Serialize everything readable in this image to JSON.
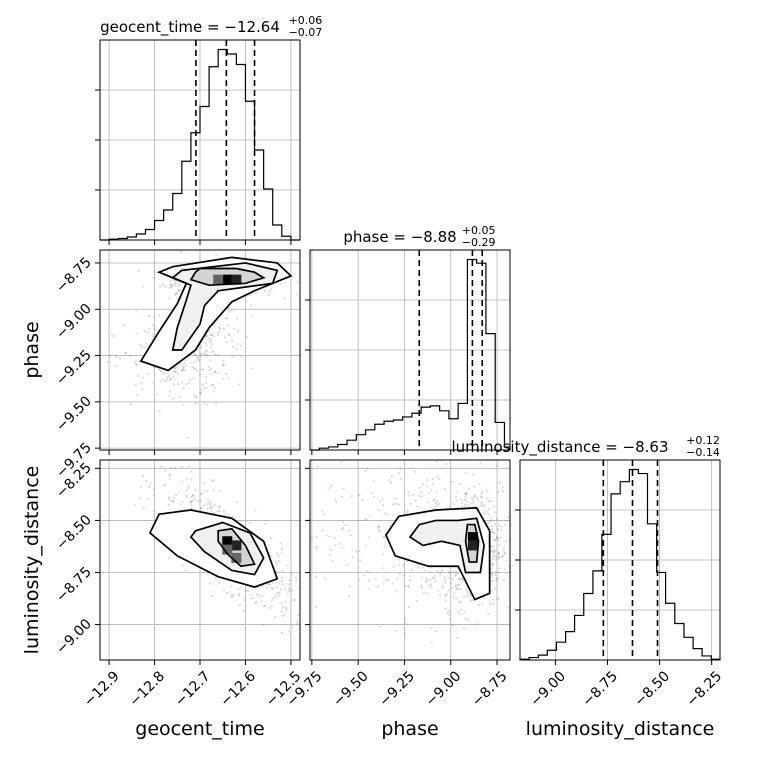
{
  "chart_data": {
    "type": "corner",
    "parameters": [
      "geocent_time",
      "phase",
      "luminosity_distance"
    ],
    "axis_labels": {
      "geocent_time": "geocent_time",
      "phase": "phase",
      "luminosity_distance": "luminosity_distance"
    },
    "ranges": {
      "geocent_time": [
        -12.92,
        -12.48
      ],
      "phase": [
        -9.76,
        -8.68
      ],
      "luminosity_distance": [
        -9.17,
        -8.21
      ]
    },
    "ticks": {
      "geocent_time": [
        -12.9,
        -12.8,
        -12.7,
        -12.6,
        -12.5
      ],
      "phase": [
        -9.75,
        -9.5,
        -9.25,
        -9.0,
        -8.75
      ],
      "luminosity_distance": [
        -9.0,
        -8.75,
        -8.5,
        -8.25
      ]
    },
    "tick_labels": {
      "geocent_time": [
        "−12.9",
        "−12.8",
        "−12.7",
        "−12.6",
        "−12.5"
      ],
      "phase_x": [
        "−9.75",
        "−9.50",
        "−9.25",
        "−9.00",
        "−8.75"
      ],
      "phase_y": [
        "−8.75",
        "−9.00",
        "−9.25",
        "−9.50",
        "−9.75"
      ],
      "luminosity_distance_x": [
        "−9.00",
        "−8.75",
        "−8.50",
        "−8.25"
      ],
      "luminosity_distance_y": [
        "−8.25",
        "−8.50",
        "−8.75",
        "−9.00"
      ]
    },
    "titles": [
      {
        "param": "geocent_time",
        "prefix": "geocent_time = −12.64",
        "plus": "+0.06",
        "minus": "−0.07"
      },
      {
        "param": "phase",
        "prefix": "phase = −8.88",
        "plus": "+0.05",
        "minus": "−0.29"
      },
      {
        "param": "luminosity_distance",
        "prefix": "luminosity_distance = −8.63",
        "plus": "+0.12",
        "minus": "−0.14"
      }
    ],
    "quantiles": {
      "geocent_time": [
        -12.709,
        -12.642,
        -12.58
      ],
      "phase": [
        -9.17,
        -8.883,
        -8.83
      ],
      "luminosity_distance": [
        -8.77,
        -8.63,
        -8.51
      ]
    },
    "histograms": {
      "geocent_time": {
        "edges": [
          -12.92,
          -12.9,
          -12.88,
          -12.86,
          -12.84,
          -12.82,
          -12.8,
          -12.78,
          -12.76,
          -12.74,
          -12.72,
          -12.7,
          -12.68,
          -12.66,
          -12.64,
          -12.62,
          -12.6,
          -12.58,
          -12.56,
          -12.54,
          -12.52,
          -12.5,
          -12.48
        ],
        "counts": [
          0,
          1,
          2,
          4,
          8,
          14,
          26,
          40,
          62,
          105,
          143,
          178,
          231,
          254,
          248,
          234,
          185,
          120,
          68,
          20,
          5,
          0
        ]
      },
      "phase": {
        "edges": [
          -9.76,
          -9.71,
          -9.66,
          -9.61,
          -9.56,
          -9.51,
          -9.46,
          -9.41,
          -9.36,
          -9.31,
          -9.26,
          -9.21,
          -9.16,
          -9.11,
          -9.06,
          -9.01,
          -8.96,
          -8.91,
          -8.86,
          -8.81,
          -8.76,
          -8.71,
          -8.68
        ],
        "counts": [
          0,
          3,
          5,
          9,
          16,
          25,
          33,
          42,
          47,
          49,
          54,
          60,
          70,
          72,
          64,
          51,
          76,
          311,
          305,
          190,
          45,
          5
        ]
      },
      "luminosity_distance": {
        "edges": [
          -9.17,
          -9.126,
          -9.082,
          -9.039,
          -8.995,
          -8.951,
          -8.908,
          -8.864,
          -8.82,
          -8.777,
          -8.733,
          -8.689,
          -8.645,
          -8.602,
          -8.558,
          -8.514,
          -8.471,
          -8.427,
          -8.383,
          -8.339,
          -8.296,
          -8.252,
          -8.21
        ],
        "counts": [
          1,
          3,
          6,
          12,
          22,
          35,
          55,
          82,
          110,
          155,
          205,
          220,
          235,
          230,
          168,
          108,
          70,
          45,
          28,
          14,
          5,
          1
        ]
      }
    },
    "pairs": [
      {
        "x": "geocent_time",
        "y": "phase",
        "density_blobs": [
          {
            "x": -12.64,
            "y": -8.84,
            "sx": 0.035,
            "sy": 0.025,
            "w": 0.55
          },
          {
            "x": -12.7,
            "y": -9.05,
            "sx": 0.03,
            "sy": 0.1,
            "w": 0.25
          },
          {
            "x": -12.76,
            "y": -9.3,
            "sx": 0.04,
            "sy": 0.07,
            "w": 0.2
          }
        ],
        "peak_cells": [
          [
            -12.64,
            -8.84
          ],
          [
            -12.62,
            -8.84
          ],
          [
            -12.66,
            -8.84
          ]
        ],
        "contours": [
          [
            [
              -12.7,
              -8.78
            ],
            [
              -12.62,
              -8.78
            ],
            [
              -12.58,
              -8.8
            ],
            [
              -12.56,
              -8.83
            ],
            [
              -12.6,
              -8.86
            ],
            [
              -12.68,
              -8.87
            ],
            [
              -12.72,
              -8.84
            ],
            [
              -12.71,
              -8.8
            ]
          ],
          [
            [
              -12.74,
              -8.79
            ],
            [
              -12.6,
              -8.75
            ],
            [
              -12.53,
              -8.79
            ],
            [
              -12.54,
              -8.86
            ],
            [
              -12.66,
              -8.9
            ],
            [
              -12.69,
              -8.98
            ],
            [
              -12.7,
              -9.08
            ],
            [
              -12.74,
              -9.22
            ],
            [
              -12.76,
              -9.22
            ],
            [
              -12.75,
              -9.1
            ],
            [
              -12.73,
              -8.95
            ],
            [
              -12.72,
              -8.87
            ],
            [
              -12.76,
              -8.83
            ]
          ],
          [
            [
              -12.76,
              -8.77
            ],
            [
              -12.63,
              -8.72
            ],
            [
              -12.53,
              -8.75
            ],
            [
              -12.5,
              -8.82
            ],
            [
              -12.58,
              -8.9
            ],
            [
              -12.63,
              -8.96
            ],
            [
              -12.68,
              -9.1
            ],
            [
              -12.71,
              -9.22
            ],
            [
              -12.77,
              -9.33
            ],
            [
              -12.83,
              -9.28
            ],
            [
              -12.79,
              -9.12
            ],
            [
              -12.75,
              -8.97
            ],
            [
              -12.73,
              -8.86
            ],
            [
              -12.79,
              -8.8
            ]
          ]
        ]
      },
      {
        "x": "geocent_time",
        "y": "luminosity_distance",
        "density_blobs": [
          {
            "x": -12.64,
            "y": -8.62,
            "sx": 0.045,
            "sy": 0.1,
            "w": 0.7,
            "rho": 0.8
          }
        ],
        "peak_cells": [
          [
            -12.64,
            -8.6
          ],
          [
            -12.62,
            -8.62
          ],
          [
            -12.64,
            -8.64
          ],
          [
            -12.62,
            -8.68
          ]
        ],
        "contours": [
          [
            [
              -12.66,
              -8.55
            ],
            [
              -12.63,
              -8.54
            ],
            [
              -12.6,
              -8.62
            ],
            [
              -12.58,
              -8.71
            ],
            [
              -12.61,
              -8.72
            ],
            [
              -12.64,
              -8.66
            ],
            [
              -12.66,
              -8.6
            ]
          ],
          [
            [
              -12.71,
              -8.55
            ],
            [
              -12.65,
              -8.51
            ],
            [
              -12.59,
              -8.56
            ],
            [
              -12.56,
              -8.68
            ],
            [
              -12.58,
              -8.76
            ],
            [
              -12.63,
              -8.74
            ],
            [
              -12.69,
              -8.65
            ],
            [
              -12.72,
              -8.58
            ]
          ],
          [
            [
              -12.79,
              -8.47
            ],
            [
              -12.72,
              -8.45
            ],
            [
              -12.63,
              -8.49
            ],
            [
              -12.56,
              -8.6
            ],
            [
              -12.53,
              -8.78
            ],
            [
              -12.58,
              -8.82
            ],
            [
              -12.66,
              -8.77
            ],
            [
              -12.75,
              -8.67
            ],
            [
              -12.81,
              -8.56
            ]
          ]
        ]
      },
      {
        "x": "phase",
        "y": "luminosity_distance",
        "density_blobs": [
          {
            "x": -8.88,
            "y": -8.63,
            "sx": 0.05,
            "sy": 0.09,
            "w": 0.55
          },
          {
            "x": -9.15,
            "y": -8.6,
            "sx": 0.18,
            "sy": 0.12,
            "w": 0.45
          }
        ],
        "peak_cells": [
          [
            -8.88,
            -8.58
          ],
          [
            -8.88,
            -8.62
          ]
        ],
        "contours": [
          [
            [
              -8.91,
              -8.52
            ],
            [
              -8.87,
              -8.52
            ],
            [
              -8.85,
              -8.6
            ],
            [
              -8.86,
              -8.7
            ],
            [
              -8.9,
              -8.7
            ],
            [
              -8.92,
              -8.6
            ]
          ],
          [
            [
              -8.96,
              -8.5
            ],
            [
              -8.86,
              -8.49
            ],
            [
              -8.82,
              -8.62
            ],
            [
              -8.84,
              -8.75
            ],
            [
              -8.92,
              -8.75
            ],
            [
              -8.95,
              -8.62
            ],
            [
              -9.05,
              -8.6
            ],
            [
              -9.15,
              -8.62
            ],
            [
              -9.22,
              -8.58
            ],
            [
              -9.17,
              -8.52
            ],
            [
              -9.08,
              -8.5
            ]
          ],
          [
            [
              -9.08,
              -8.45
            ],
            [
              -8.86,
              -8.44
            ],
            [
              -8.79,
              -8.55
            ],
            [
              -8.79,
              -8.85
            ],
            [
              -8.87,
              -8.88
            ],
            [
              -8.96,
              -8.72
            ],
            [
              -9.12,
              -8.72
            ],
            [
              -9.3,
              -8.67
            ],
            [
              -9.35,
              -8.57
            ],
            [
              -9.28,
              -8.48
            ]
          ]
        ]
      }
    ]
  }
}
